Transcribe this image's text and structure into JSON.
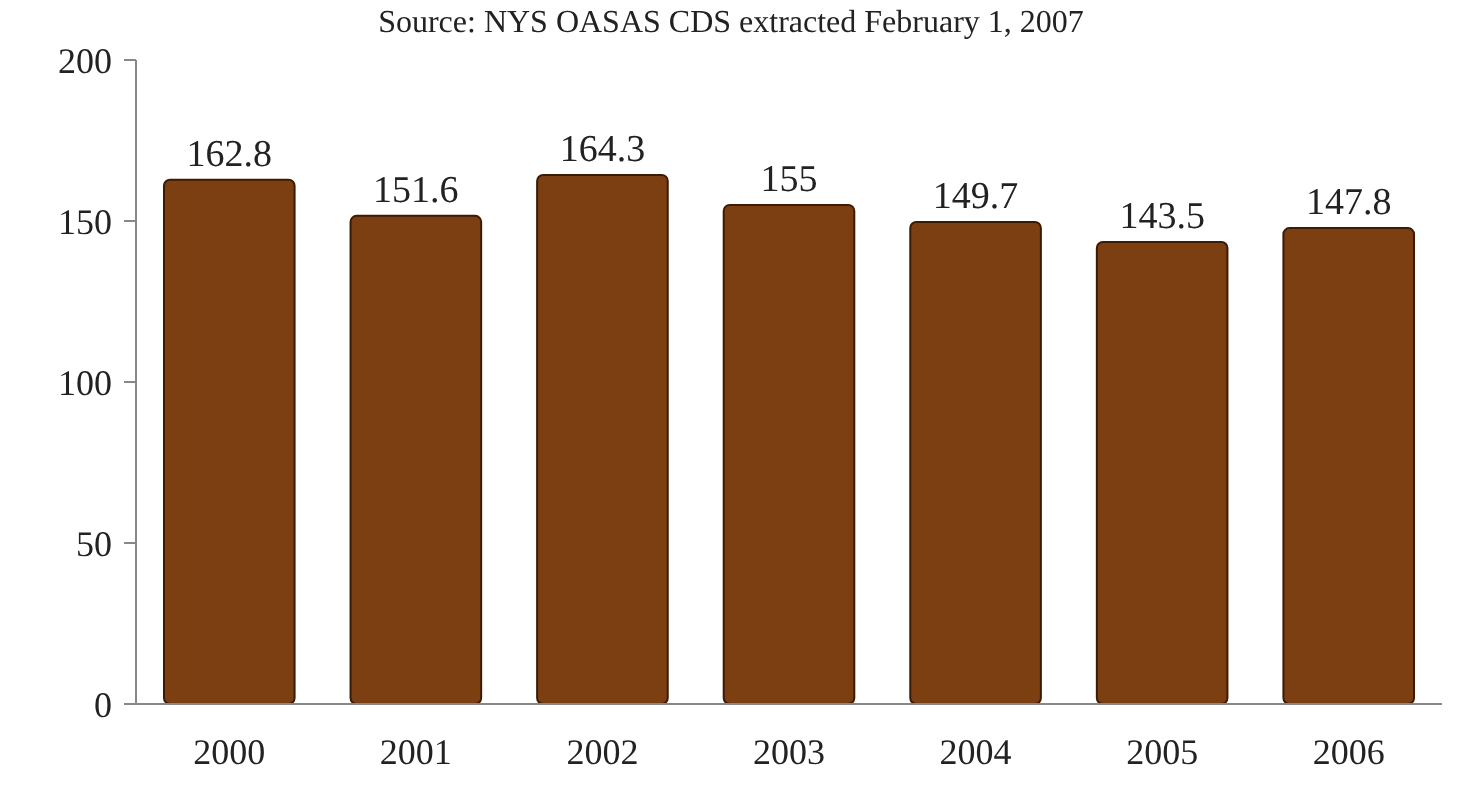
{
  "chart_data": {
    "type": "bar",
    "categories": [
      "2000",
      "2001",
      "2002",
      "2003",
      "2004",
      "2005",
      "2006"
    ],
    "values": [
      162.8,
      151.6,
      164.3,
      155,
      149.7,
      143.5,
      147.8
    ],
    "color": "#7b3f12",
    "ylim": [
      0,
      200
    ],
    "yticks": [
      0,
      50,
      100,
      150,
      200
    ],
    "data_labels": true,
    "grid": false,
    "annotations": [
      "Source: NYS OASAS CDS extracted February 1, 2007"
    ]
  }
}
